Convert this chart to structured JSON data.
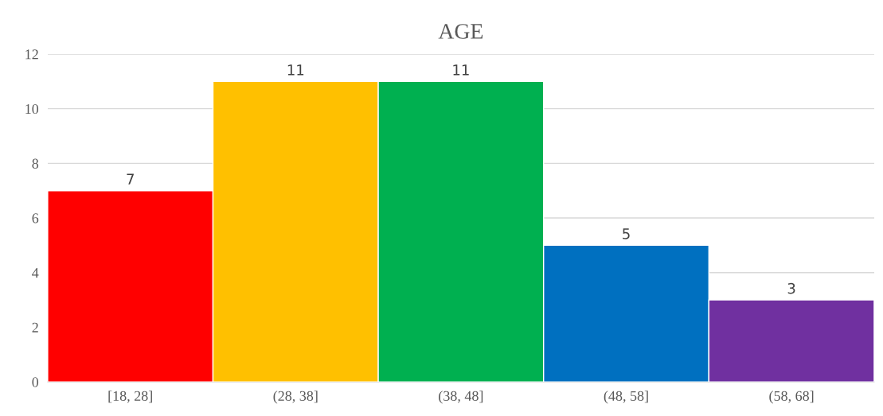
{
  "chart_data": {
    "type": "bar",
    "title": "AGE",
    "categories": [
      "[18, 28]",
      "(28, 38]",
      "(38, 48]",
      "(48, 58]",
      "(58, 68]"
    ],
    "values": [
      7,
      11,
      11,
      5,
      3
    ],
    "colors": [
      "#ff0000",
      "#ffc000",
      "#00b050",
      "#0070c0",
      "#7030a0"
    ],
    "ylim": [
      0,
      12
    ],
    "yticks": [
      0,
      2,
      4,
      6,
      8,
      10,
      12
    ],
    "grid": "y",
    "data_labels": true
  }
}
